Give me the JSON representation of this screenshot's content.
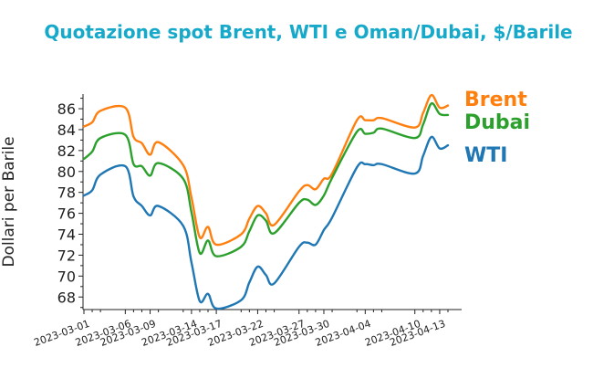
{
  "chart_data": {
    "type": "line",
    "title": "Quotazione spot Brent, WTI e Oman/Dubai, $/Barile",
    "ylabel": "Dollari per Barile",
    "xlabel": "",
    "ylim": [
      66.8,
      87.4
    ],
    "yticks": [
      68,
      70,
      72,
      74,
      76,
      78,
      80,
      82,
      84,
      86
    ],
    "x_tick_labels": [
      "2023-03-01",
      "2023-03-06",
      "2023-03-09",
      "2023-03-14",
      "2023-03-17",
      "2023-03-22",
      "2023-03-27",
      "2023-03-30",
      "2023-04-04",
      "2023-04-10",
      "2023-04-13"
    ],
    "x": [
      "2023-03-01",
      "2023-03-02",
      "2023-03-03",
      "2023-03-06",
      "2023-03-07",
      "2023-03-08",
      "2023-03-09",
      "2023-03-10",
      "2023-03-13",
      "2023-03-14",
      "2023-03-15",
      "2023-03-16",
      "2023-03-17",
      "2023-03-20",
      "2023-03-21",
      "2023-03-22",
      "2023-03-23",
      "2023-03-24",
      "2023-03-27",
      "2023-03-28",
      "2023-03-29",
      "2023-03-30",
      "2023-03-31",
      "2023-04-03",
      "2023-04-04",
      "2023-04-05",
      "2023-04-06",
      "2023-04-10",
      "2023-04-11",
      "2023-04-12",
      "2023-04-13",
      "2023-04-14"
    ],
    "legend": "right, labels next to line ends",
    "grid": false,
    "series": [
      {
        "name": "Brent",
        "color": "#ff7f0e",
        "values": [
          84.3,
          84.7,
          85.8,
          86.1,
          83.3,
          82.7,
          81.6,
          82.8,
          80.6,
          77.5,
          73.7,
          74.7,
          73.0,
          74.0,
          75.5,
          76.7,
          76.0,
          74.9,
          78.1,
          78.7,
          78.3,
          79.3,
          79.8,
          84.9,
          84.9,
          84.9,
          85.1,
          84.2,
          85.6,
          87.3,
          86.1,
          86.3
        ]
      },
      {
        "name": "Dubai",
        "color": "#2ca02c",
        "values": [
          81.2,
          81.9,
          83.2,
          83.5,
          80.7,
          80.5,
          79.6,
          80.8,
          79.3,
          76.1,
          72.2,
          73.4,
          71.9,
          72.8,
          74.3,
          75.8,
          75.3,
          74.1,
          77.0,
          77.3,
          76.8,
          77.7,
          79.4,
          83.8,
          83.6,
          83.7,
          84.1,
          83.2,
          84.5,
          86.5,
          85.5,
          85.4
        ]
      },
      {
        "name": "WTI",
        "color": "#1f77b4",
        "values": [
          77.7,
          78.2,
          79.7,
          80.5,
          77.6,
          76.7,
          75.8,
          76.7,
          74.8,
          71.3,
          67.6,
          68.3,
          66.9,
          67.7,
          69.4,
          70.9,
          70.1,
          69.3,
          72.8,
          73.2,
          73.0,
          74.4,
          75.6,
          80.4,
          80.7,
          80.6,
          80.7,
          79.8,
          81.5,
          83.3,
          82.2,
          82.5
        ]
      }
    ]
  }
}
